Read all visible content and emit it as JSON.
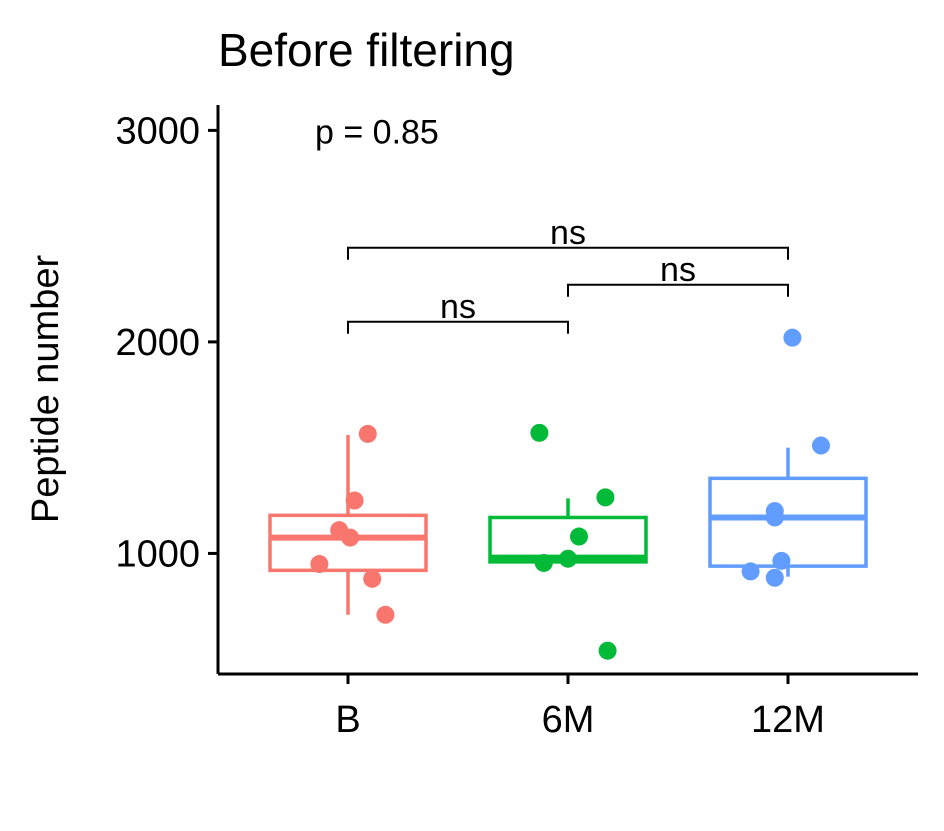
{
  "chart_data": {
    "type": "box",
    "title": "Before filtering",
    "xlabel": "",
    "ylabel": "Peptide number",
    "categories": [
      "B",
      "6M",
      "12M"
    ],
    "ylim": [
      430,
      3120
    ],
    "yticks": [
      1000,
      2000,
      3000
    ],
    "grid": false,
    "legend": "none",
    "colors": {
      "B": "#F8766D",
      "6M": "#00BA38",
      "12M": "#619CFF",
      "axis": "#000000"
    },
    "series": [
      {
        "category": "B",
        "box": {
          "whisker_low": 710,
          "q1": 920,
          "median": 1075,
          "q3": 1180,
          "whisker_high": 1560
        },
        "points": [
          {
            "x": 0.09,
            "y": 1565
          },
          {
            "x": 0.03,
            "y": 1250
          },
          {
            "x": -0.04,
            "y": 1110
          },
          {
            "x": 0.01,
            "y": 1075
          },
          {
            "x": -0.13,
            "y": 950
          },
          {
            "x": 0.11,
            "y": 880
          },
          {
            "x": 0.17,
            "y": 710
          }
        ]
      },
      {
        "category": "6M",
        "box": {
          "whisker_low": 960,
          "q1": 960,
          "median": 980,
          "q3": 1170,
          "whisker_high": 1260
        },
        "points": [
          {
            "x": -0.13,
            "y": 1570
          },
          {
            "x": 0.17,
            "y": 1265
          },
          {
            "x": 0.05,
            "y": 1080
          },
          {
            "x": -0.11,
            "y": 955
          },
          {
            "x": 0.0,
            "y": 975
          },
          {
            "x": 0.18,
            "y": 540
          }
        ]
      },
      {
        "category": "12M",
        "box": {
          "whisker_low": 890,
          "q1": 940,
          "median": 1170,
          "q3": 1355,
          "whisker_high": 1500
        },
        "points": [
          {
            "x": 0.02,
            "y": 2020
          },
          {
            "x": 0.15,
            "y": 1510
          },
          {
            "x": -0.06,
            "y": 1200
          },
          {
            "x": -0.06,
            "y": 1170
          },
          {
            "x": -0.03,
            "y": 965
          },
          {
            "x": -0.17,
            "y": 915
          },
          {
            "x": -0.06,
            "y": 885
          }
        ]
      }
    ],
    "annotations": {
      "global_test": {
        "text": "p = 0.85",
        "x": 0.12,
        "y": 3010
      },
      "comparisons": [
        {
          "from": "B",
          "to": "6M",
          "y": 2095,
          "label": "ns"
        },
        {
          "from": "6M",
          "to": "12M",
          "y": 2270,
          "label": "ns"
        },
        {
          "from": "B",
          "to": "12M",
          "y": 2445,
          "label": "ns"
        }
      ]
    }
  }
}
